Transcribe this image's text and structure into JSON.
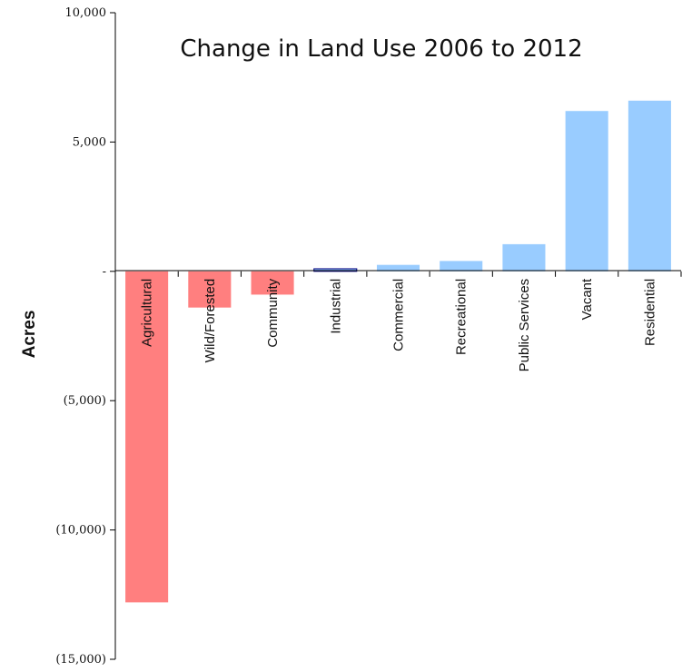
{
  "chart_data": {
    "type": "bar",
    "title": "Change in Land Use 2006 to 2012",
    "xlabel": "",
    "ylabel": "Acres",
    "ylim": [
      -15000,
      10000
    ],
    "yticks": [
      10000,
      5000,
      0,
      -5000,
      -10000,
      -15000
    ],
    "ytick_labels": [
      "10,000",
      "5,000",
      "-",
      "(5,000)",
      "(10,000)",
      "(15,000)"
    ],
    "categories": [
      "Agricultural",
      "Wild/Forested",
      "Community",
      "Industrial",
      "Commercial",
      "Recreational",
      "Public Services",
      "Vacant",
      "Residential"
    ],
    "values": [
      -12800,
      -1400,
      -900,
      100,
      250,
      400,
      1050,
      6200,
      6600
    ],
    "grid": false,
    "colors": {
      "negative": "#ff7f7f",
      "positive": "#99ccff",
      "industrial_fill": "#99ccff",
      "industrial_stroke": "#000080"
    }
  }
}
